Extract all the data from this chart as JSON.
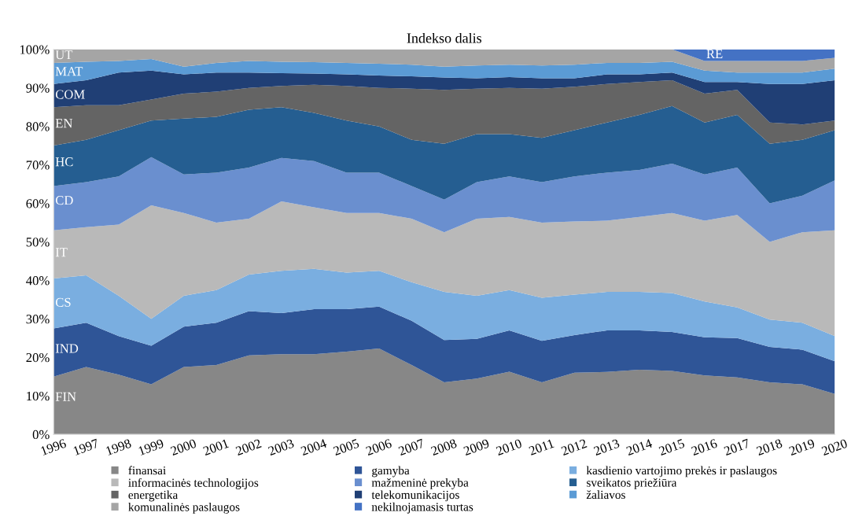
{
  "chart_data": {
    "type": "area",
    "stacked": true,
    "title": "Indekso dalis",
    "categories": [
      "1996",
      "1997",
      "1998",
      "1999",
      "2000",
      "2001",
      "2002",
      "2003",
      "2004",
      "2005",
      "2006",
      "2007",
      "2008",
      "2009",
      "2010",
      "2011",
      "2012",
      "2013",
      "2014",
      "2015",
      "2016",
      "2017",
      "2018",
      "2019",
      "2020"
    ],
    "ylim": [
      0,
      100
    ],
    "yticks": [
      {
        "value": 0,
        "label": "0%"
      },
      {
        "value": 10,
        "label": "10%"
      },
      {
        "value": 20,
        "label": "20%"
      },
      {
        "value": 30,
        "label": "30%"
      },
      {
        "value": 40,
        "label": "40%"
      },
      {
        "value": 50,
        "label": "50%"
      },
      {
        "value": 60,
        "label": "60%"
      },
      {
        "value": 70,
        "label": "70%"
      },
      {
        "value": 80,
        "label": "80%"
      },
      {
        "value": 90,
        "label": "90%"
      },
      {
        "value": 100,
        "label": "100%"
      }
    ],
    "legend": "bottom",
    "series": [
      {
        "name": "finansai",
        "color": "#878787",
        "values": [
          15,
          17.5,
          15.5,
          13,
          17.5,
          18,
          20.5,
          20.8,
          20.8,
          21.5,
          22.3,
          18,
          13.5,
          14.5,
          16.3,
          13.5,
          16,
          16.2,
          16.8,
          16.5,
          15.3,
          14.8,
          13.5,
          13,
          10.5
        ]
      },
      {
        "name": "gamyba",
        "color": "#2f5597",
        "values": [
          12.5,
          11.5,
          10,
          10,
          10.5,
          11,
          11.5,
          10.7,
          11.7,
          11,
          10.9,
          11.5,
          11,
          10.3,
          10.7,
          10.8,
          9.8,
          10.8,
          10.2,
          10.1,
          9.9,
          10.2,
          9.2,
          9,
          8.5
        ]
      },
      {
        "name": "kasdienio vartojimo prekės ir paslaugos",
        "color": "#7aaee0",
        "values": [
          13,
          12.3,
          10.5,
          7,
          8,
          8.5,
          9.5,
          11,
          10.5,
          9.5,
          9.3,
          10,
          12.5,
          11.2,
          10.5,
          11.2,
          10.5,
          10,
          10,
          10.1,
          9.3,
          8,
          7.1,
          7,
          6.5
        ]
      },
      {
        "name": "informacinės technologijos",
        "color": "#b9b9b9",
        "values": [
          12.5,
          12.5,
          18.5,
          29.5,
          21.5,
          17.5,
          14.5,
          18,
          16,
          15.5,
          15,
          16.5,
          15.5,
          20,
          19,
          19.5,
          19,
          18.5,
          19.5,
          20.8,
          21,
          24,
          20.2,
          23.5,
          27.5
        ]
      },
      {
        "name": "mažmeninė prekyba",
        "color": "#6a8fcf",
        "values": [
          11.5,
          11.7,
          12.5,
          12.5,
          10,
          13,
          13.3,
          11.3,
          12,
          10.5,
          10.5,
          8.5,
          8.5,
          9.5,
          10.5,
          10.5,
          11.7,
          12.5,
          12.2,
          12.8,
          12,
          12.3,
          10,
          9.5,
          13
        ]
      },
      {
        "name": "sveikatos priežiūra",
        "color": "#255e91",
        "values": [
          10.5,
          11,
          12,
          9.5,
          14.5,
          14.5,
          15,
          13.2,
          12.5,
          13.5,
          12,
          12,
          14.5,
          12.5,
          11,
          11.5,
          12,
          13,
          14.3,
          15,
          13.5,
          13.7,
          15.5,
          14.5,
          13
        ]
      },
      {
        "name": "energetika",
        "color": "#646464",
        "values": [
          10,
          9,
          6.5,
          5.5,
          6.5,
          6.5,
          5.7,
          5.5,
          7.3,
          9,
          10,
          13.3,
          14,
          11.8,
          12,
          12.8,
          11.3,
          10,
          8.5,
          6.7,
          7.5,
          6.5,
          5.5,
          4,
          2.5
        ]
      },
      {
        "name": "telekomunikacijos",
        "color": "#203f75",
        "values": [
          6,
          6.5,
          8.5,
          7.5,
          5,
          5,
          4,
          3.3,
          2.9,
          3,
          3.2,
          3.2,
          3.2,
          2.7,
          2.8,
          2.7,
          2.2,
          2.5,
          2,
          2,
          3,
          2,
          10,
          10.5,
          10.5
        ]
      },
      {
        "name": "žaliavos",
        "color": "#5b9bd5",
        "values": [
          5.5,
          4.8,
          3,
          3,
          2,
          2.5,
          3,
          3,
          3,
          3,
          3.1,
          3,
          2.8,
          3.3,
          3.2,
          3.3,
          3.5,
          3,
          3,
          2.8,
          3,
          2.5,
          3,
          3,
          3
        ]
      },
      {
        "name": "komunalinės paslaugos",
        "color": "#a5a5a5",
        "values": [
          3.5,
          3.2,
          3,
          2.5,
          4.5,
          3.5,
          3,
          3.2,
          3.3,
          3.5,
          3.7,
          4,
          4.5,
          4.2,
          4,
          4.2,
          4,
          3.5,
          3.5,
          3.2,
          2.5,
          3,
          3,
          3,
          2.8
        ]
      },
      {
        "name": "nekilnojamasis turtas",
        "color": "#4472c4",
        "values": [
          0,
          0,
          0,
          0,
          0,
          0,
          0,
          0,
          0,
          0,
          0,
          0,
          0,
          0,
          0,
          0,
          0,
          0,
          0,
          0,
          3,
          3,
          3,
          3,
          2.2
        ]
      }
    ],
    "annotations": [
      {
        "text": "UT",
        "x": "1996",
        "y": 98.3
      },
      {
        "text": "MAT",
        "x": "1996",
        "y": 94
      },
      {
        "text": "COM",
        "x": "1996",
        "y": 88
      },
      {
        "text": "EN",
        "x": "1996",
        "y": 80.5
      },
      {
        "text": "HC",
        "x": "1996",
        "y": 70.5
      },
      {
        "text": "CD",
        "x": "1996",
        "y": 60.5
      },
      {
        "text": "IT",
        "x": "1996",
        "y": 47
      },
      {
        "text": "CS",
        "x": "1996",
        "y": 34
      },
      {
        "text": "IND",
        "x": "1996",
        "y": 22
      },
      {
        "text": "FIN",
        "x": "1996",
        "y": 9.5
      },
      {
        "text": "RE",
        "x": "2016",
        "y": 97
      }
    ]
  }
}
